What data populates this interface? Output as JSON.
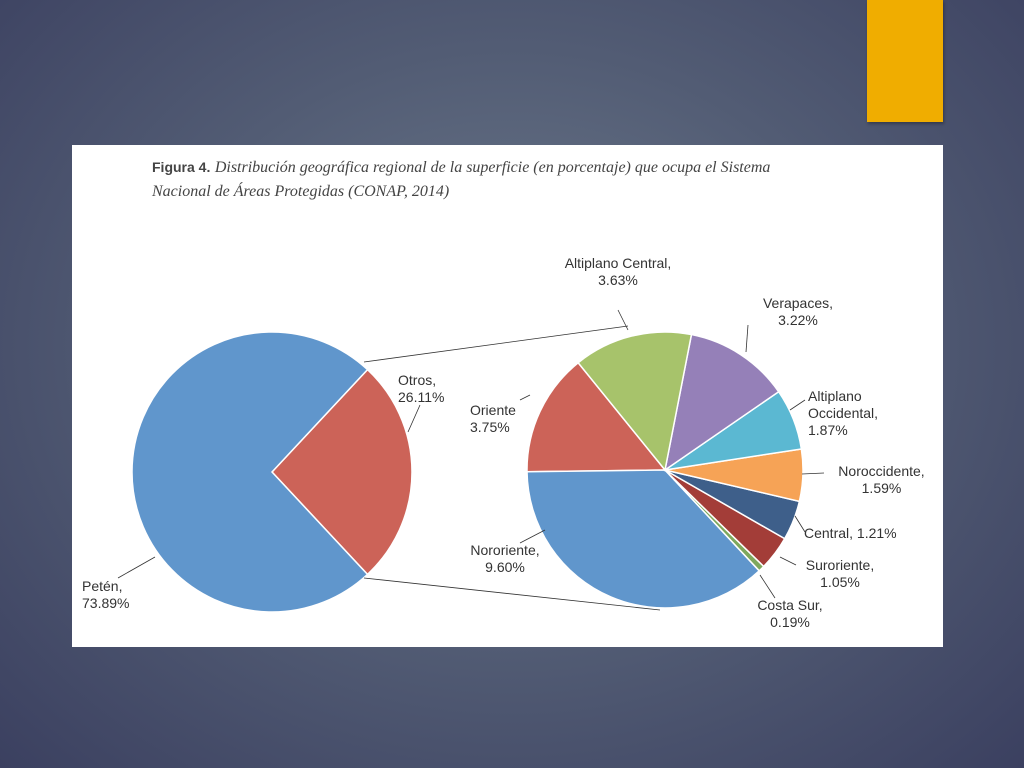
{
  "chart_data": {
    "type": "pie-of-pie",
    "title_label": "Figura 4.",
    "title": "Distribución geográfica regional de la superficie (en porcentaje) que ocupa el Sistema Nacional de Áreas Protegidas (CONAP, 2014)",
    "categories": [
      "Petén,",
      "Otros,"
    ],
    "values": [
      73.89,
      26.11
    ],
    "value_labels": [
      "73.89%",
      "26.11%"
    ],
    "colors": [
      "#6096cc",
      "#cc6358"
    ],
    "sub": {
      "categories": [
        "Altiplano Central,",
        "Verapaces,",
        "Altiplano Occidental,",
        "Noroccidente,",
        "Central,",
        "Suroriente,",
        "Costa Sur,",
        "Nororiente,",
        "Oriente"
      ],
      "values": [
        3.63,
        3.22,
        1.87,
        1.59,
        1.21,
        1.05,
        0.19,
        9.6,
        3.75
      ],
      "value_labels": [
        "3.63%",
        "3.22%",
        "1.87%",
        "1.59%",
        "1.21%",
        "1.05%",
        "0.19%",
        "9.60%",
        "3.75%"
      ],
      "colors": [
        "#a7c36b",
        "#9580b8",
        "#5bb8d2",
        "#f6a356",
        "#3e5f8a",
        "#a33d38",
        "#7ea85d",
        "#6096cc",
        "#cc6358"
      ]
    }
  }
}
